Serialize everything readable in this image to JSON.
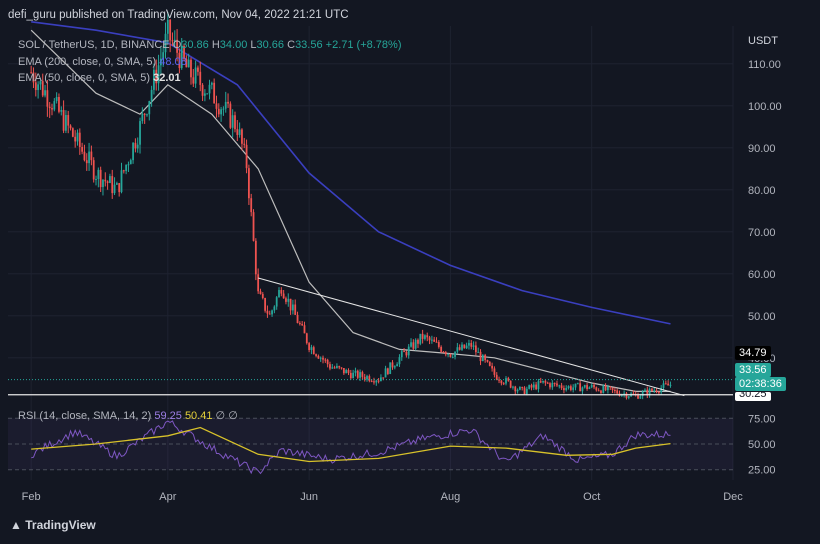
{
  "header": {
    "published": "defi_guru published on TradingView.com, Nov 04, 2022 21:21 UTC",
    "symbol": "SOL / TetherUS, 1D, BINANCE",
    "o_label": "O",
    "o": "30.86",
    "h_label": "H",
    "h": "34.00",
    "l_label": "L",
    "l": "30.66",
    "c_label": "C",
    "c": "33.56",
    "change": "+2.71 (+8.78%)",
    "ema200_label": "EMA (200, close, 0, SMA, 5)",
    "ema200_value": "48.08",
    "ema50_label": "EMA (50, close, 0, SMA, 5)",
    "ema50_value": "32.01",
    "currency": "USDT"
  },
  "rsi": {
    "label": "RSI (14, close, SMA, 14, 2)",
    "value": "59.25",
    "sma_value": "50.41",
    "extra1": "∅",
    "extra2": "∅"
  },
  "price_tags": {
    "level": "34.79",
    "last": "33.56",
    "countdown": "02:38:36",
    "partial": "30.25"
  },
  "footer": {
    "brand": "TradingView"
  },
  "colors": {
    "up": "#26a69a",
    "down": "#ef5350",
    "ema200": "#3a3fbf",
    "ema50": "#bdbdbd",
    "rsi_line": "#7e57c2",
    "rsi_sma": "#d8c22a",
    "background": "#131722"
  },
  "chart_data": [
    {
      "type": "candlestick",
      "title": "SOL / TetherUS, 1D, BINANCE",
      "ylabel": "USDT",
      "y_ticks": [
        110,
        100,
        90,
        80,
        70,
        60,
        50,
        40
      ],
      "x_ticks": [
        "Feb",
        "Apr",
        "Jun",
        "Aug",
        "Oct",
        "Dec"
      ],
      "ylim": [
        29,
        119
      ],
      "close_series": {
        "x": [
          "Feb 01",
          "Feb 10",
          "Feb 20",
          "Mar 01",
          "Mar 10",
          "Mar 20",
          "Apr 01",
          "Apr 10",
          "Apr 20",
          "May 01",
          "May 05",
          "May 10",
          "May 15",
          "May 20",
          "Jun 01",
          "Jun 10",
          "Jun 20",
          "Jul 01",
          "Jul 10",
          "Jul 20",
          "Aug 01",
          "Aug 10",
          "Aug 20",
          "Sep 01",
          "Sep 10",
          "Sep 20",
          "Oct 01",
          "Oct 10",
          "Oct 20",
          "Nov 04"
        ],
        "values": [
          108,
          101,
          92,
          84,
          80,
          95,
          117,
          108,
          103,
          95,
          86,
          55,
          50,
          57,
          43,
          38,
          36,
          35,
          40,
          45,
          41,
          43,
          36,
          32,
          34,
          33,
          33,
          32,
          31,
          33.56
        ]
      },
      "ema50": {
        "x": [
          "Feb 01",
          "Mar 01",
          "Mar 20",
          "Apr 01",
          "Apr 20",
          "May 10",
          "Jun 01",
          "Jun 20",
          "Jul 10",
          "Aug 01",
          "Aug 20",
          "Sep 10",
          "Oct 01",
          "Oct 20",
          "Nov 04"
        ],
        "values": [
          118,
          103,
          98,
          105,
          98,
          85,
          58,
          46,
          42,
          41,
          40,
          37,
          34,
          32,
          32.01
        ]
      },
      "ema200": {
        "x": [
          "Feb 01",
          "Mar 01",
          "Apr 01",
          "May 01",
          "Jun 01",
          "Jul 01",
          "Aug 01",
          "Sep 01",
          "Oct 01",
          "Nov 04"
        ],
        "values": [
          120,
          118,
          115,
          105,
          84,
          70,
          62,
          56,
          52,
          48.08
        ]
      },
      "trendline": {
        "from": {
          "x": "May 10",
          "y": 59
        },
        "to": {
          "x": "Nov 10",
          "y": 31
        }
      },
      "horizontal_levels": [
        34.79,
        31.2
      ],
      "last": 33.56
    },
    {
      "type": "line",
      "title": "RSI (14, close, SMA, 14, 2)",
      "y_ticks": [
        75,
        50,
        25
      ],
      "ylim": [
        15,
        85
      ],
      "series": [
        {
          "name": "RSI",
          "x": [
            "Feb 01",
            "Feb 20",
            "Mar 10",
            "Apr 01",
            "Apr 20",
            "May 10",
            "May 20",
            "Jun 10",
            "Jul 01",
            "Jul 20",
            "Aug 10",
            "Aug 25",
            "Sep 10",
            "Sep 25",
            "Oct 10",
            "Oct 20",
            "Nov 04"
          ],
          "values": [
            40,
            62,
            38,
            72,
            46,
            22,
            44,
            35,
            42,
            55,
            64,
            32,
            58,
            34,
            40,
            59,
            59.25
          ]
        },
        {
          "name": "RSI SMA",
          "x": [
            "Feb 01",
            "Mar 01",
            "Apr 01",
            "Apr 15",
            "May 10",
            "Jun 01",
            "Jul 01",
            "Aug 01",
            "Aug 25",
            "Sep 20",
            "Oct 10",
            "Oct 20",
            "Nov 04"
          ],
          "values": [
            45,
            50,
            58,
            66,
            40,
            33,
            36,
            48,
            46,
            39,
            40,
            46,
            50.41
          ]
        }
      ]
    }
  ]
}
